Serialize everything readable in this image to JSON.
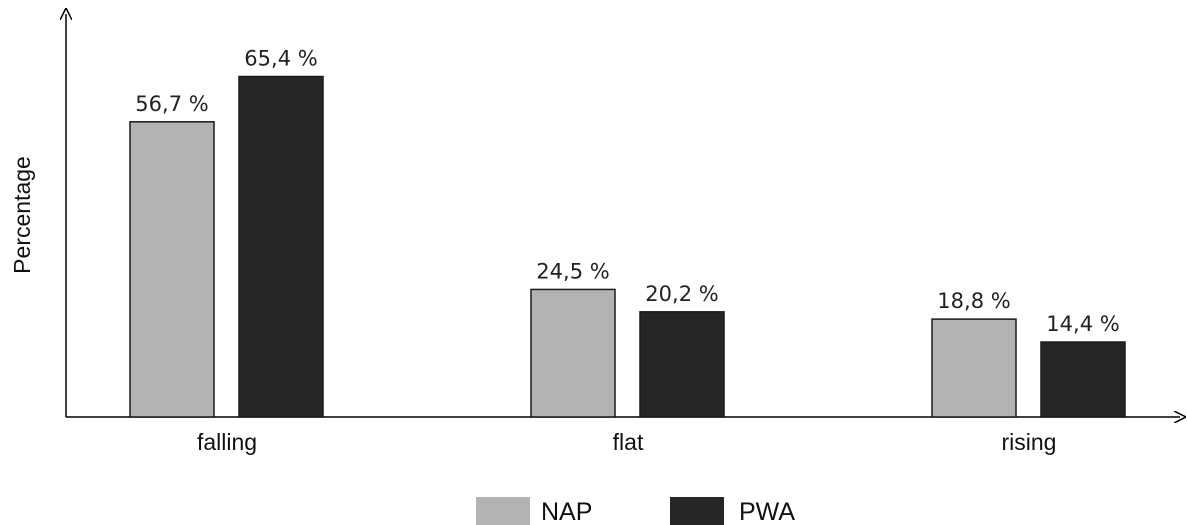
{
  "chart_data": {
    "type": "bar",
    "title": "",
    "xlabel": "",
    "ylabel": "Percentage",
    "ylim": [
      0,
      70
    ],
    "categories": [
      "falling",
      "flat",
      "rising"
    ],
    "series": [
      {
        "name": "NAP",
        "values": [
          56.7,
          24.5,
          18.8
        ],
        "labels": [
          "56,7 %",
          "24,5 %",
          "18,8 %"
        ],
        "color": "#b3b3b3"
      },
      {
        "name": "PWA",
        "values": [
          65.4,
          20.2,
          14.4
        ],
        "labels": [
          "65,4 %",
          "20,2 %",
          "14,4 %"
        ],
        "color": "#262626"
      }
    ],
    "grid": false,
    "legend": "bottom-center"
  }
}
